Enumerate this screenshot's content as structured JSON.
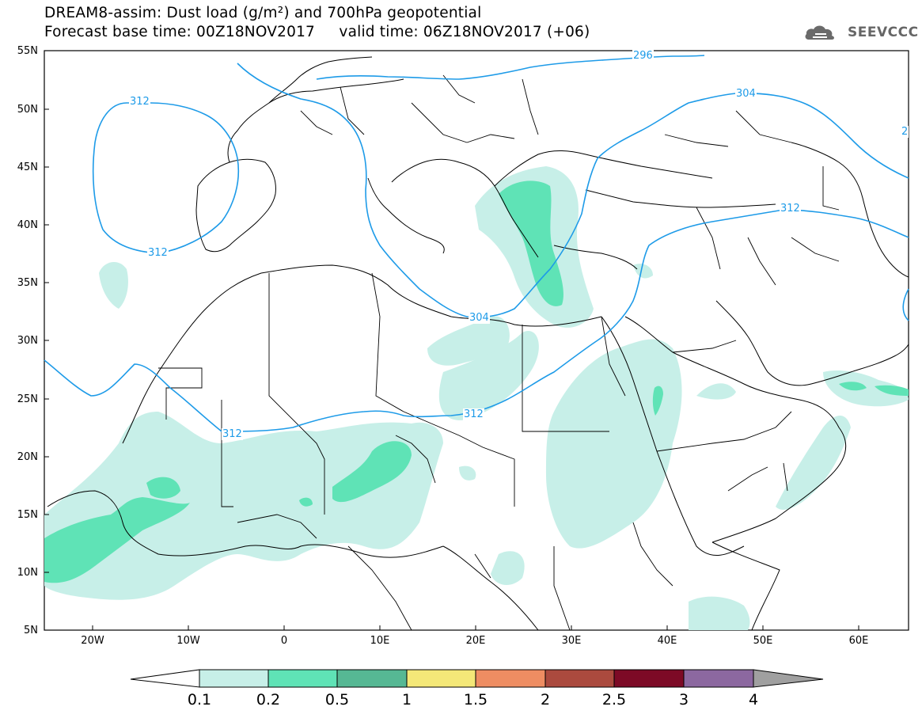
{
  "header": {
    "title_line1": "DREAM8-assim: Dust load (g/m²) and 700hPa geopotential",
    "title_line2": "Forecast base time: 00Z18NOV2017     valid time: 06Z18NOV2017 (+06)",
    "logo_text": "SEEVCCC"
  },
  "map": {
    "lat_labels": [
      "55N",
      "50N",
      "45N",
      "40N",
      "35N",
      "30N",
      "25N",
      "20N",
      "15N",
      "10N",
      "5N"
    ],
    "lon_labels": [
      "20W",
      "10W",
      "0",
      "10E",
      "20E",
      "30E",
      "40E",
      "50E",
      "60E"
    ],
    "geopotential_labels": {
      "a": "312",
      "b": "312",
      "c": "304",
      "d": "312",
      "e": "312",
      "f": "296",
      "g": "304",
      "h": "312",
      "i": "2"
    },
    "contour_color": "#1e9be8",
    "coast_color": "#000000"
  },
  "legend": {
    "labels": [
      "0.1",
      "0.2",
      "0.5",
      "1",
      "1.5",
      "2",
      "2.5",
      "3",
      "4"
    ],
    "colors": [
      "#c7efe8",
      "#5fe3b6",
      "#56b894",
      "#f4e878",
      "#ee8d62",
      "#ab4a3e",
      "#7d0a26",
      "#8c68a0",
      "#a0a0a0"
    ],
    "under_color": "#ffffff"
  }
}
